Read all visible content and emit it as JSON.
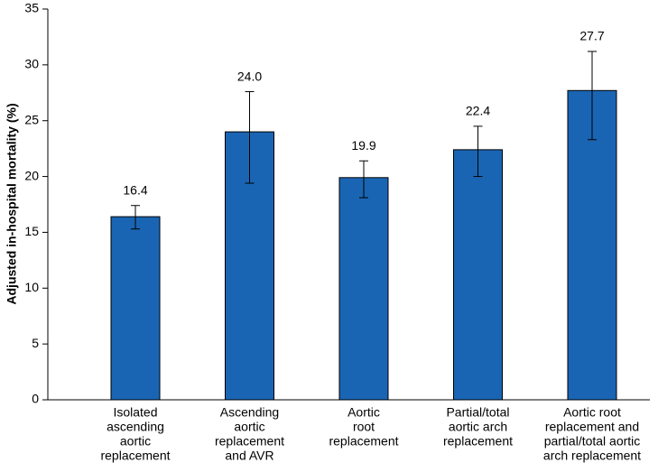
{
  "chart_data": {
    "type": "bar",
    "y_label": "Adjusted in-hospital mortality (%)",
    "categories": [
      [
        "Isolated",
        "ascending",
        "aortic",
        "replacement"
      ],
      [
        "Ascending",
        "aortic",
        "replacement",
        "and AVR"
      ],
      [
        "Aortic",
        "root",
        "replacement"
      ],
      [
        "Partial/total",
        "aortic arch",
        "replacement"
      ],
      [
        "Aortic root",
        "replacement and",
        "partial/total aortic",
        "arch replacement"
      ]
    ],
    "values": [
      16.4,
      24,
      19.9,
      22.4,
      27.7
    ],
    "value_labels": [
      "16.4",
      "24.0",
      "19.9",
      "22.4",
      "27.7"
    ],
    "error_low": [
      15.3,
      19.4,
      18.1,
      20.0,
      23.3
    ],
    "error_high": [
      17.4,
      27.6,
      21.4,
      24.5,
      31.2
    ],
    "color": "#1a65b3",
    "ylim": [
      0,
      35
    ],
    "yticks": [
      0,
      5,
      10,
      15,
      20,
      25,
      30,
      35
    ]
  }
}
